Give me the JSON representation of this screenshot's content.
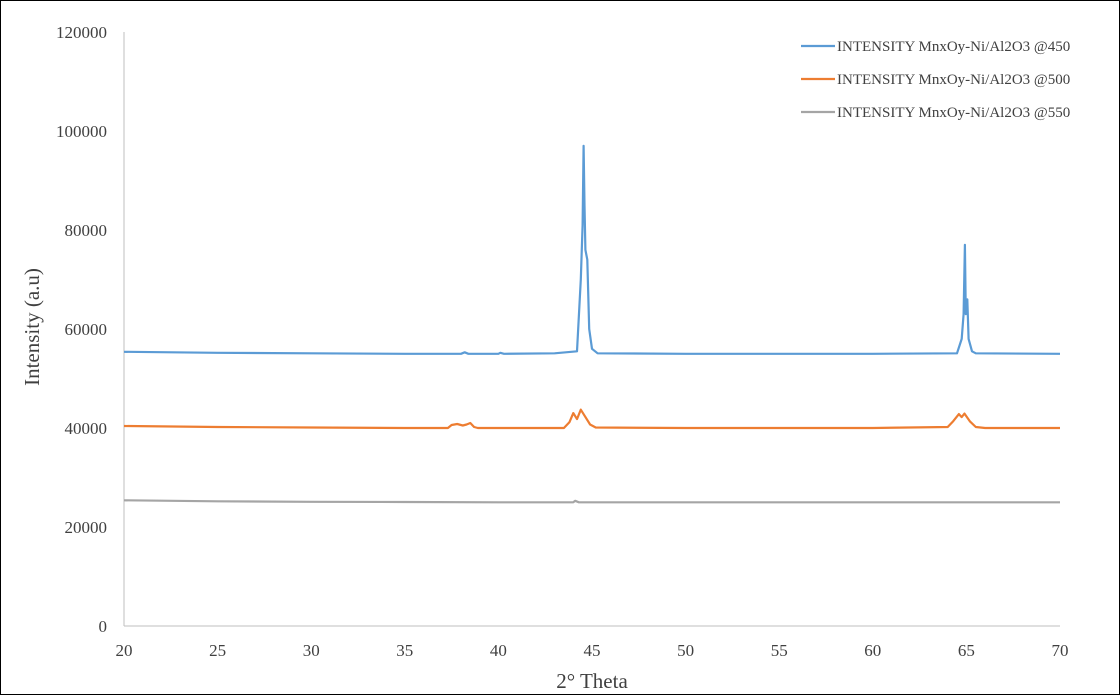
{
  "chart_data": {
    "type": "line",
    "title": "",
    "xlabel": "2° Theta",
    "ylabel": "Intensity (a.u)",
    "xlim": [
      20,
      70
    ],
    "ylim": [
      0,
      120000
    ],
    "x_ticks": [
      20,
      25,
      30,
      35,
      40,
      45,
      50,
      55,
      60,
      65,
      70
    ],
    "y_ticks": [
      0,
      20000,
      40000,
      60000,
      80000,
      100000,
      120000
    ],
    "grid": false,
    "legend_position": "top-right",
    "series": [
      {
        "name": "INTENSITY MnxOy-Ni/Al2O3 @450",
        "color": "#5b9bd5",
        "points": [
          [
            20,
            55400
          ],
          [
            25,
            55200
          ],
          [
            30,
            55100
          ],
          [
            35,
            55000
          ],
          [
            38,
            55000
          ],
          [
            38.2,
            55300
          ],
          [
            38.4,
            55000
          ],
          [
            40,
            55000
          ],
          [
            40.1,
            55200
          ],
          [
            40.3,
            55000
          ],
          [
            43,
            55100
          ],
          [
            44.2,
            55500
          ],
          [
            44.4,
            70000
          ],
          [
            44.5,
            81000
          ],
          [
            44.55,
            97000
          ],
          [
            44.6,
            85000
          ],
          [
            44.65,
            76000
          ],
          [
            44.75,
            74000
          ],
          [
            44.85,
            60000
          ],
          [
            45,
            56000
          ],
          [
            45.3,
            55100
          ],
          [
            50,
            55000
          ],
          [
            55,
            55000
          ],
          [
            60,
            55000
          ],
          [
            64.5,
            55100
          ],
          [
            64.75,
            58000
          ],
          [
            64.85,
            63000
          ],
          [
            64.92,
            77000
          ],
          [
            64.97,
            63000
          ],
          [
            65.05,
            66000
          ],
          [
            65.12,
            58000
          ],
          [
            65.3,
            55500
          ],
          [
            65.5,
            55100
          ],
          [
            70,
            55000
          ]
        ]
      },
      {
        "name": "INTENSITY MnxOy-Ni/Al2O3 @500",
        "color": "#ed7d31",
        "points": [
          [
            20,
            40400
          ],
          [
            25,
            40200
          ],
          [
            30,
            40100
          ],
          [
            35,
            40000
          ],
          [
            37.3,
            40000
          ],
          [
            37.5,
            40600
          ],
          [
            37.8,
            40800
          ],
          [
            38.1,
            40500
          ],
          [
            38.3,
            40700
          ],
          [
            38.5,
            41000
          ],
          [
            38.7,
            40200
          ],
          [
            38.9,
            40000
          ],
          [
            43.5,
            40000
          ],
          [
            43.8,
            41200
          ],
          [
            44,
            43000
          ],
          [
            44.2,
            41800
          ],
          [
            44.4,
            43700
          ],
          [
            44.6,
            42500
          ],
          [
            44.9,
            40700
          ],
          [
            45.2,
            40100
          ],
          [
            50,
            40000
          ],
          [
            55,
            40000
          ],
          [
            60,
            40000
          ],
          [
            64,
            40200
          ],
          [
            64.3,
            41400
          ],
          [
            64.6,
            42800
          ],
          [
            64.75,
            42200
          ],
          [
            64.9,
            42900
          ],
          [
            65.2,
            41300
          ],
          [
            65.5,
            40200
          ],
          [
            66,
            40000
          ],
          [
            70,
            40000
          ]
        ]
      },
      {
        "name": "INTENSITY MnxOy-Ni/Al2O3 @550",
        "color": "#a5a5a5",
        "points": [
          [
            20,
            25400
          ],
          [
            25,
            25200
          ],
          [
            30,
            25100
          ],
          [
            35,
            25050
          ],
          [
            40,
            25000
          ],
          [
            44,
            25000
          ],
          [
            44.1,
            25300
          ],
          [
            44.3,
            25000
          ],
          [
            50,
            25000
          ],
          [
            55,
            25000
          ],
          [
            60,
            25000
          ],
          [
            65,
            25000
          ],
          [
            70,
            25000
          ]
        ]
      }
    ]
  }
}
